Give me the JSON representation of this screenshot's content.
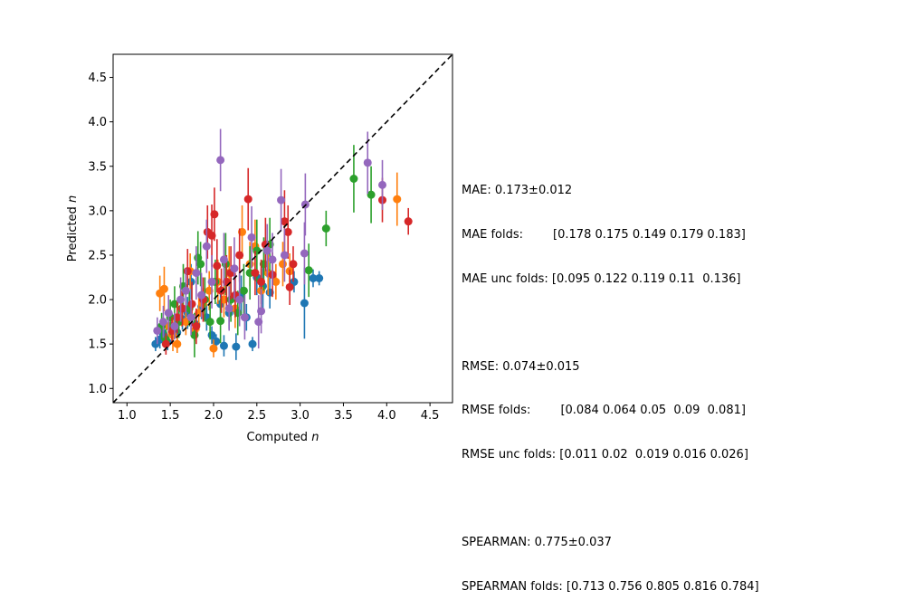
{
  "chart_data": {
    "type": "scatter",
    "title": "",
    "xlabel": "Computed",
    "xlabel_var": "n",
    "ylabel": "Predicted",
    "ylabel_var": "n",
    "xlim": [
      0.84,
      4.76
    ],
    "ylim": [
      0.84,
      4.76
    ],
    "xticks": [
      "1.0",
      "1.5",
      "2.0",
      "2.5",
      "3.0",
      "3.5",
      "4.0",
      "4.5"
    ],
    "yticks": [
      "1.0",
      "1.5",
      "2.0",
      "2.5",
      "3.0",
      "3.5",
      "4.0",
      "4.5"
    ],
    "reference_line": {
      "style": "dashed",
      "color": "#000000",
      "from": [
        0.84,
        0.84
      ],
      "to": [
        4.76,
        4.76
      ]
    },
    "series": [
      {
        "color": "#1f77b4",
        "points": [
          [
            1.33,
            1.5,
            0.08
          ],
          [
            1.38,
            1.55,
            0.1
          ],
          [
            1.42,
            1.62,
            0.12
          ],
          [
            1.47,
            1.52,
            0.09
          ],
          [
            1.52,
            1.7,
            0.15
          ],
          [
            1.58,
            1.63,
            0.1
          ],
          [
            1.64,
            1.78,
            0.12
          ],
          [
            1.7,
            1.85,
            0.18
          ],
          [
            1.74,
            2.2,
            0.2
          ],
          [
            1.8,
            1.72,
            0.12
          ],
          [
            1.86,
            1.92,
            0.14
          ],
          [
            1.92,
            1.8,
            0.15
          ],
          [
            1.98,
            1.6,
            0.1
          ],
          [
            2.03,
            1.53,
            0.08
          ],
          [
            2.08,
            1.95,
            0.2
          ],
          [
            2.12,
            1.48,
            0.12
          ],
          [
            2.18,
            1.85,
            0.18
          ],
          [
            2.26,
            1.47,
            0.15
          ],
          [
            2.32,
            2.05,
            0.22
          ],
          [
            2.38,
            1.8,
            0.15
          ],
          [
            2.45,
            1.5,
            0.08
          ],
          [
            2.5,
            2.25,
            0.2
          ],
          [
            2.57,
            2.15,
            0.25
          ],
          [
            2.65,
            2.08,
            0.18
          ],
          [
            2.93,
            2.2,
            0.12
          ],
          [
            3.05,
            1.96,
            0.4
          ],
          [
            3.15,
            2.24,
            0.1
          ],
          [
            3.22,
            2.24,
            0.08
          ]
        ]
      },
      {
        "color": "#ff7f0e",
        "points": [
          [
            1.38,
            2.07,
            0.2
          ],
          [
            1.43,
            2.12,
            0.25
          ],
          [
            1.48,
            1.7,
            0.15
          ],
          [
            1.53,
            1.6,
            0.18
          ],
          [
            1.58,
            1.5,
            0.1
          ],
          [
            1.63,
            1.9,
            0.2
          ],
          [
            1.68,
            1.75,
            0.15
          ],
          [
            1.73,
            2.32,
            0.2
          ],
          [
            1.78,
            1.65,
            0.12
          ],
          [
            1.83,
            1.85,
            0.2
          ],
          [
            1.88,
            1.95,
            0.18
          ],
          [
            1.95,
            2.1,
            0.22
          ],
          [
            2.0,
            1.45,
            0.1
          ],
          [
            2.05,
            2.2,
            0.25
          ],
          [
            2.12,
            2.0,
            0.2
          ],
          [
            2.18,
            2.3,
            0.3
          ],
          [
            2.25,
            1.9,
            0.22
          ],
          [
            2.33,
            2.76,
            0.3
          ],
          [
            2.42,
            2.4,
            0.25
          ],
          [
            2.48,
            2.6,
            0.3
          ],
          [
            2.55,
            2.1,
            0.25
          ],
          [
            2.63,
            2.3,
            0.25
          ],
          [
            2.72,
            2.2,
            0.2
          ],
          [
            2.8,
            2.4,
            0.25
          ],
          [
            2.88,
            2.32,
            0.2
          ],
          [
            4.12,
            3.13,
            0.3
          ]
        ]
      },
      {
        "color": "#2ca02c",
        "points": [
          [
            1.4,
            1.7,
            0.15
          ],
          [
            1.45,
            1.55,
            0.12
          ],
          [
            1.5,
            1.8,
            0.2
          ],
          [
            1.55,
            1.95,
            0.2
          ],
          [
            1.6,
            1.75,
            0.18
          ],
          [
            1.65,
            2.15,
            0.25
          ],
          [
            1.72,
            1.9,
            0.2
          ],
          [
            1.78,
            1.6,
            0.25
          ],
          [
            1.82,
            2.47,
            0.3
          ],
          [
            1.85,
            2.4,
            0.25
          ],
          [
            1.9,
            2.0,
            0.25
          ],
          [
            1.96,
            1.75,
            0.2
          ],
          [
            2.02,
            2.2,
            0.25
          ],
          [
            2.08,
            1.76,
            0.25
          ],
          [
            2.14,
            2.4,
            0.35
          ],
          [
            2.2,
            2.0,
            0.25
          ],
          [
            2.28,
            1.85,
            0.25
          ],
          [
            2.35,
            2.1,
            0.3
          ],
          [
            2.42,
            2.3,
            0.3
          ],
          [
            2.5,
            2.55,
            0.35
          ],
          [
            2.58,
            2.4,
            0.3
          ],
          [
            2.65,
            2.62,
            0.3
          ],
          [
            3.1,
            2.33,
            0.3
          ],
          [
            3.3,
            2.8,
            0.2
          ],
          [
            3.62,
            3.36,
            0.38
          ],
          [
            3.82,
            3.18,
            0.32
          ]
        ]
      },
      {
        "color": "#d62728",
        "points": [
          [
            1.45,
            1.5,
            0.12
          ],
          [
            1.52,
            1.65,
            0.15
          ],
          [
            1.58,
            1.8,
            0.18
          ],
          [
            1.64,
            1.9,
            0.2
          ],
          [
            1.7,
            2.32,
            0.25
          ],
          [
            1.75,
            1.95,
            0.25
          ],
          [
            1.8,
            1.7,
            0.2
          ],
          [
            1.88,
            2.0,
            0.25
          ],
          [
            1.93,
            2.76,
            0.3
          ],
          [
            1.98,
            2.72,
            0.35
          ],
          [
            2.01,
            2.96,
            0.3
          ],
          [
            2.04,
            2.38,
            0.3
          ],
          [
            2.09,
            2.1,
            0.25
          ],
          [
            2.15,
            2.2,
            0.3
          ],
          [
            2.2,
            2.3,
            0.3
          ],
          [
            2.25,
            2.05,
            0.25
          ],
          [
            2.3,
            2.5,
            0.3
          ],
          [
            2.4,
            3.13,
            0.35
          ],
          [
            2.48,
            2.3,
            0.25
          ],
          [
            2.55,
            2.2,
            0.25
          ],
          [
            2.6,
            2.62,
            0.3
          ],
          [
            2.68,
            2.28,
            0.25
          ],
          [
            2.82,
            2.88,
            0.35
          ],
          [
            2.86,
            2.76,
            0.3
          ],
          [
            2.88,
            2.14,
            0.2
          ],
          [
            2.92,
            2.4,
            0.2
          ],
          [
            3.95,
            3.12,
            0.25
          ],
          [
            4.25,
            2.88,
            0.15
          ]
        ]
      },
      {
        "color": "#9467bd",
        "points": [
          [
            1.35,
            1.65,
            0.15
          ],
          [
            1.42,
            1.75,
            0.18
          ],
          [
            1.48,
            1.85,
            0.2
          ],
          [
            1.55,
            1.7,
            0.15
          ],
          [
            1.62,
            2.0,
            0.25
          ],
          [
            1.68,
            2.1,
            0.25
          ],
          [
            1.74,
            1.8,
            0.2
          ],
          [
            1.8,
            2.3,
            0.3
          ],
          [
            1.86,
            2.05,
            0.25
          ],
          [
            1.92,
            2.6,
            0.3
          ],
          [
            1.98,
            2.2,
            0.3
          ],
          [
            2.08,
            3.57,
            0.35
          ],
          [
            2.12,
            2.45,
            0.3
          ],
          [
            2.18,
            1.9,
            0.25
          ],
          [
            2.24,
            2.35,
            0.35
          ],
          [
            2.3,
            2.0,
            0.3
          ],
          [
            2.36,
            1.8,
            0.25
          ],
          [
            2.44,
            2.7,
            0.35
          ],
          [
            2.52,
            1.75,
            0.3
          ],
          [
            2.55,
            1.87,
            0.25
          ],
          [
            2.62,
            2.55,
            0.3
          ],
          [
            2.68,
            2.45,
            0.3
          ],
          [
            2.78,
            3.12,
            0.35
          ],
          [
            2.82,
            2.5,
            0.3
          ],
          [
            3.06,
            3.07,
            0.35
          ],
          [
            3.05,
            2.52,
            0.35
          ],
          [
            3.78,
            3.54,
            0.35
          ],
          [
            3.95,
            3.29,
            0.28
          ]
        ]
      }
    ]
  },
  "stats": {
    "mae": "MAE: 0.173±0.012",
    "mae_folds": "MAE folds:        [0.178 0.175 0.149 0.179 0.183]",
    "mae_unc_folds": "MAE unc folds: [0.095 0.122 0.119 0.11  0.136]",
    "rmse": "RMSE: 0.074±0.015",
    "rmse_folds": "RMSE folds:        [0.084 0.064 0.05  0.09  0.081]",
    "rmse_unc_folds": "RMSE unc folds: [0.011 0.02  0.019 0.016 0.026]",
    "spearman": "SPEARMAN: 0.775±0.037",
    "spearman_folds": "SPEARMAN folds: [0.713 0.756 0.805 0.816 0.784]"
  }
}
